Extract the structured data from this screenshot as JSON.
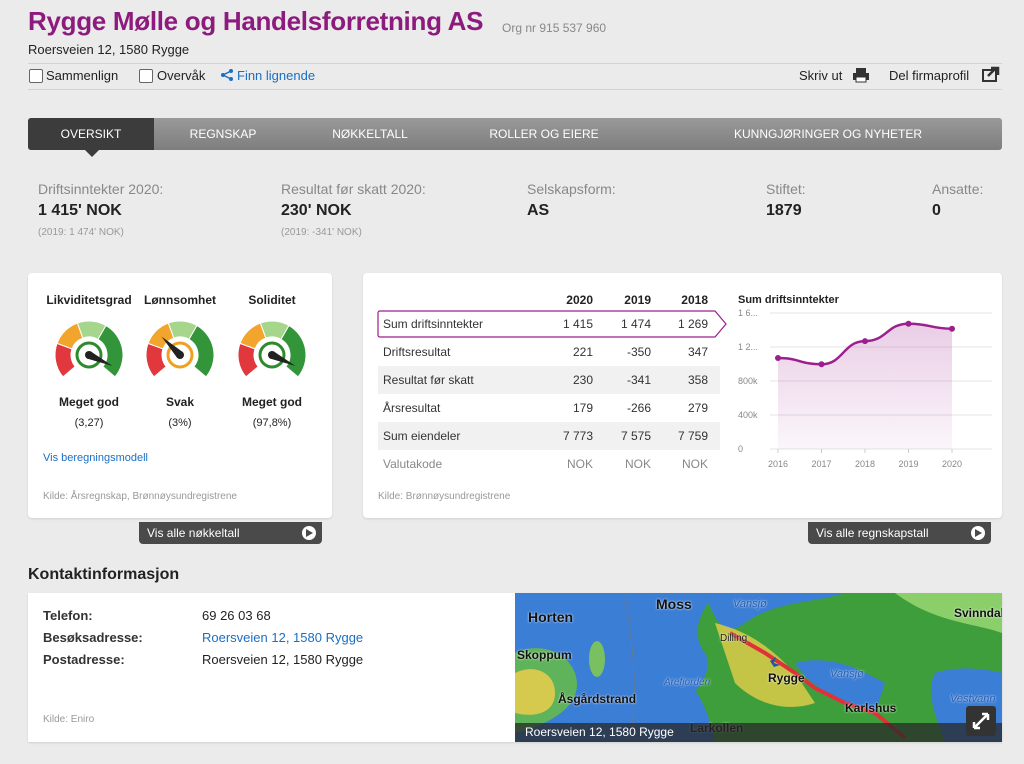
{
  "header": {
    "title": "Rygge Mølle og Handelsforretning AS",
    "org_nr": "Org nr 915 537 960",
    "address": "Roersveien 12, 1580 Rygge"
  },
  "toolbar": {
    "compare": "Sammenlign",
    "watch": "Overvåk",
    "similar": "Finn lignende",
    "print": "Skriv ut",
    "share": "Del firmaprofil"
  },
  "tabs": [
    "OVERSIKT",
    "REGNSKAP",
    "NØKKELTALL",
    "ROLLER OG EIERE",
    "KUNNGJØRINGER OG NYHETER"
  ],
  "summary": [
    {
      "label": "Driftsinntekter 2020:",
      "value": "1 415' NOK",
      "note": "(2019: 1 474' NOK)"
    },
    {
      "label": "Resultat før skatt 2020:",
      "value": "230' NOK",
      "note": "(2019: -341' NOK)"
    },
    {
      "label": "Selskapsform:",
      "value": "AS"
    },
    {
      "label": "Stiftet:",
      "value": "1879"
    },
    {
      "label": "Ansatte:",
      "value": "0"
    }
  ],
  "key_figures": {
    "gauges": [
      {
        "name": "Likviditetsgrad",
        "rating": "Meget god",
        "value": "(3,27)"
      },
      {
        "name": "Lønnsomhet",
        "rating": "Svak",
        "value": "(3%)"
      },
      {
        "name": "Soliditet",
        "rating": "Meget god",
        "value": "(97,8%)"
      }
    ],
    "link": "Vis beregningsmodell",
    "source": "Kilde: Årsregnskap, Brønnøysundregistrene",
    "button": "Vis alle nøkkeltall"
  },
  "accounts": {
    "columns": [
      "2020",
      "2019",
      "2018"
    ],
    "rows": [
      {
        "label": "Sum driftsinntekter",
        "values": [
          "1 415",
          "1 474",
          "1 269"
        ]
      },
      {
        "label": "Driftsresultat",
        "values": [
          "221",
          "-350",
          "347"
        ]
      },
      {
        "label": "Resultat før skatt",
        "values": [
          "230",
          "-341",
          "358"
        ]
      },
      {
        "label": "Årsresultat",
        "values": [
          "179",
          "-266",
          "279"
        ]
      },
      {
        "label": "Sum eiendeler",
        "values": [
          "7 773",
          "7 575",
          "7 759"
        ]
      },
      {
        "label": "Valutakode",
        "values": [
          "NOK",
          "NOK",
          "NOK"
        ]
      }
    ],
    "source": "Kilde: Brønnøysundregistrene",
    "button": "Vis alle regnskapstall"
  },
  "chart_data": {
    "type": "area",
    "title": "Sum driftsinntekter",
    "x": [
      2016,
      2017,
      2018,
      2019,
      2020
    ],
    "values": [
      1070,
      997,
      1269,
      1474,
      1415
    ],
    "color": "#9c1f8d",
    "xlim": [
      2016,
      2020
    ],
    "xticks": [
      2016,
      2017,
      2018,
      2019,
      2020
    ],
    "ylim": [
      0,
      1600
    ],
    "yticks": [
      0,
      {
        "value": 400,
        "label": "400k"
      },
      {
        "value": 800,
        "label": "800k"
      },
      {
        "value": 1200,
        "label": "1 2..."
      },
      {
        "value": 1600,
        "label": "1 6..."
      }
    ],
    "grid": true
  },
  "contact": {
    "title": "Kontaktinformasjon",
    "fields": [
      {
        "label": "Telefon:",
        "value": "69 26 03 68"
      },
      {
        "label": "Besøksadresse:",
        "value": "Roersveien 12, 1580 Rygge"
      },
      {
        "label": "Postadresse:",
        "value": "Roersveien 12, 1580 Rygge"
      }
    ],
    "source": "Kilde: Eniro",
    "map_labels": [
      "Moss",
      "Horten",
      "Skoppum",
      "Åsgårdstrand",
      "Dilling",
      "Vansjø",
      "Rygge",
      "Vansjø",
      "Arefjorden",
      "Karlshus",
      "Larkollen",
      "Svinndal",
      "Vestvann"
    ],
    "map_caption": "Roersveien 12, 1580 Rygge"
  }
}
